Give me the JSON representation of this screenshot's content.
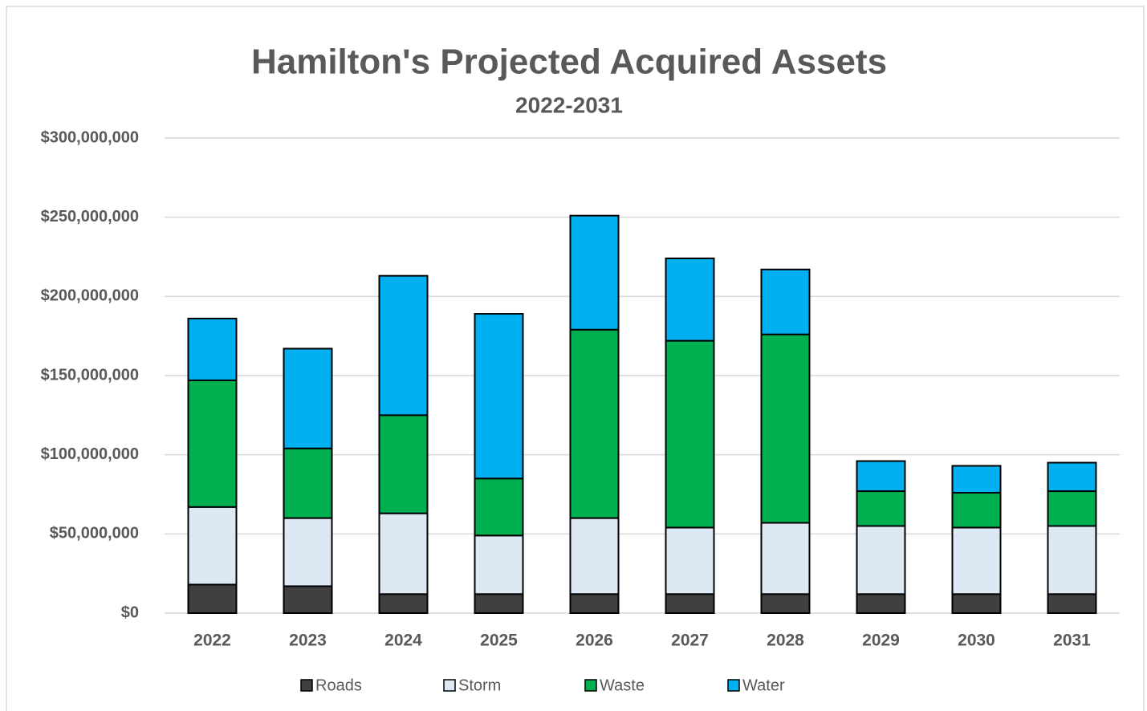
{
  "chart_data": {
    "type": "stacked_bar",
    "title": "Hamilton's Projected Acquired Assets",
    "subtitle": "2022-2031",
    "categories": [
      "2022",
      "2023",
      "2024",
      "2025",
      "2026",
      "2027",
      "2028",
      "2029",
      "2030",
      "2031"
    ],
    "series": [
      {
        "name": "Roads",
        "color": "#404040",
        "values": [
          18000000,
          17000000,
          12000000,
          12000000,
          12000000,
          12000000,
          12000000,
          12000000,
          12000000,
          12000000
        ]
      },
      {
        "name": "Storm",
        "color": "#dde8f5",
        "values": [
          49000000,
          43000000,
          51000000,
          37000000,
          48000000,
          42000000,
          45000000,
          43000000,
          42000000,
          43000000
        ]
      },
      {
        "name": "Waste",
        "color": "#00b050",
        "values": [
          80000000,
          44000000,
          62000000,
          36000000,
          119000000,
          118000000,
          119000000,
          22000000,
          22000000,
          22000000
        ]
      },
      {
        "name": "Water",
        "color": "#00b0f0",
        "values": [
          39000000,
          63000000,
          88000000,
          104000000,
          72000000,
          52000000,
          41000000,
          19000000,
          17000000,
          18000000
        ]
      }
    ],
    "ylim": [
      0,
      300000000
    ],
    "yticks": [
      {
        "value": 0,
        "label": "$0"
      },
      {
        "value": 50000000,
        "label": "$50,000,000"
      },
      {
        "value": 100000000,
        "label": "$100,000,000"
      },
      {
        "value": 150000000,
        "label": "$150,000,000"
      },
      {
        "value": 200000000,
        "label": "$200,000,000"
      },
      {
        "value": 250000000,
        "label": "$250,000,000"
      },
      {
        "value": 300000000,
        "label": "$300,000,000"
      }
    ],
    "grid": true,
    "legend": "bottom"
  }
}
